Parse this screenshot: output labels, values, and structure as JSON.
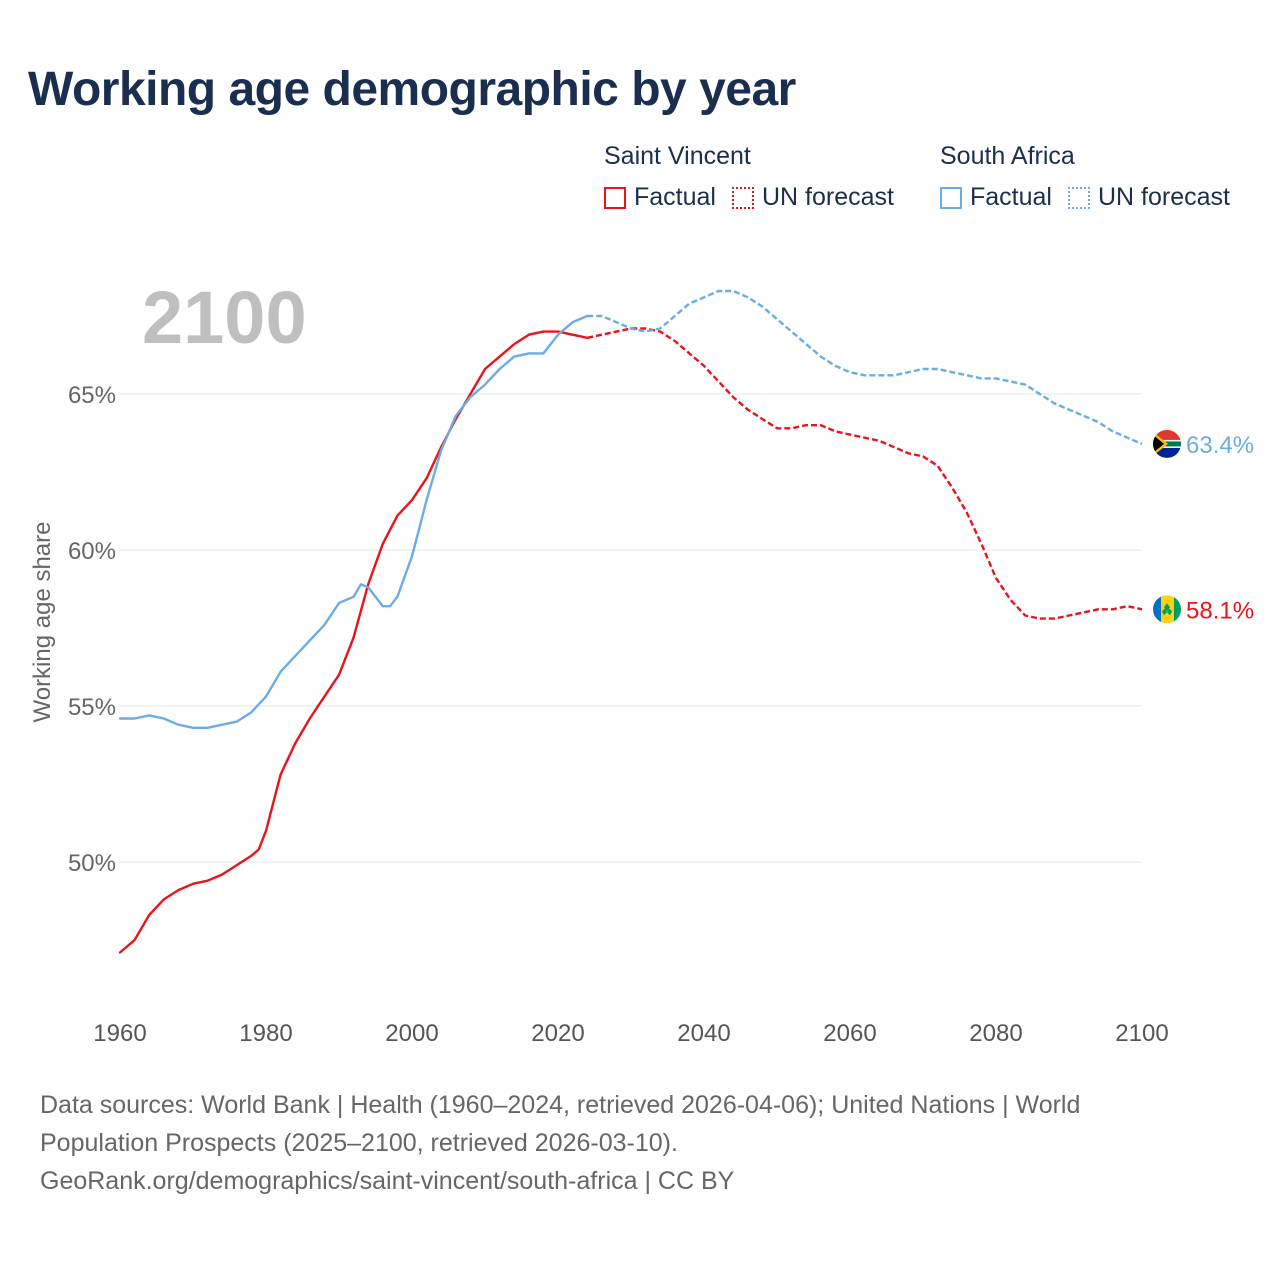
{
  "title": "Working age demographic by year",
  "legend": [
    {
      "country": "Saint Vincent",
      "factual_label": "Factual",
      "forecast_label": "UN forecast",
      "color": "#e8141c"
    },
    {
      "country": "South Africa",
      "factual_label": "Factual",
      "forecast_label": "UN forecast",
      "color": "#6aace6"
    }
  ],
  "year_watermark": "2100",
  "footer": {
    "line1": "Data sources: World Bank | Health (1960–2024, retrieved 2026-04-06); United Nations | World",
    "line2": "Population Prospects (2025–2100, retrieved 2026-03-10).",
    "line3": "GeoRank.org/demographics/saint-vincent/south-africa | CC BY"
  },
  "chart_data": {
    "type": "line",
    "title": "Working age demographic by year",
    "xlabel": "",
    "ylabel": "Working age share",
    "xlim": [
      1960,
      2100
    ],
    "ylim": [
      47,
      68.5
    ],
    "x_ticks": [
      1960,
      1980,
      2000,
      2020,
      2040,
      2060,
      2080,
      2100
    ],
    "y_ticks": [
      50,
      55,
      60,
      65
    ],
    "y_tick_labels": [
      "50%",
      "55%",
      "60%",
      "65%"
    ],
    "grid": true,
    "forecast_start_year": 2024,
    "series": [
      {
        "name": "Saint Vincent",
        "color": "#e8141c",
        "end_label": "58.1%",
        "points": [
          [
            1960,
            47.1
          ],
          [
            1962,
            47.5
          ],
          [
            1964,
            48.3
          ],
          [
            1966,
            48.8
          ],
          [
            1968,
            49.1
          ],
          [
            1970,
            49.3
          ],
          [
            1972,
            49.4
          ],
          [
            1974,
            49.6
          ],
          [
            1976,
            49.9
          ],
          [
            1978,
            50.2
          ],
          [
            1979,
            50.4
          ],
          [
            1980,
            51.0
          ],
          [
            1982,
            52.8
          ],
          [
            1984,
            53.8
          ],
          [
            1986,
            54.6
          ],
          [
            1988,
            55.3
          ],
          [
            1990,
            56.0
          ],
          [
            1992,
            57.2
          ],
          [
            1994,
            58.9
          ],
          [
            1996,
            60.2
          ],
          [
            1998,
            61.1
          ],
          [
            2000,
            61.6
          ],
          [
            2002,
            62.3
          ],
          [
            2004,
            63.3
          ],
          [
            2006,
            64.2
          ],
          [
            2008,
            65.0
          ],
          [
            2010,
            65.8
          ],
          [
            2012,
            66.2
          ],
          [
            2014,
            66.6
          ],
          [
            2016,
            66.9
          ],
          [
            2018,
            67.0
          ],
          [
            2020,
            67.0
          ],
          [
            2022,
            66.9
          ],
          [
            2024,
            66.8
          ],
          [
            2026,
            66.9
          ],
          [
            2028,
            67.0
          ],
          [
            2030,
            67.1
          ],
          [
            2032,
            67.1
          ],
          [
            2034,
            67.0
          ],
          [
            2036,
            66.7
          ],
          [
            2038,
            66.3
          ],
          [
            2040,
            65.9
          ],
          [
            2042,
            65.4
          ],
          [
            2044,
            64.9
          ],
          [
            2046,
            64.5
          ],
          [
            2048,
            64.2
          ],
          [
            2050,
            63.9
          ],
          [
            2052,
            63.9
          ],
          [
            2054,
            64.0
          ],
          [
            2056,
            64.0
          ],
          [
            2058,
            63.8
          ],
          [
            2060,
            63.7
          ],
          [
            2062,
            63.6
          ],
          [
            2064,
            63.5
          ],
          [
            2066,
            63.3
          ],
          [
            2068,
            63.1
          ],
          [
            2070,
            63.0
          ],
          [
            2072,
            62.7
          ],
          [
            2074,
            62.0
          ],
          [
            2076,
            61.2
          ],
          [
            2078,
            60.2
          ],
          [
            2080,
            59.1
          ],
          [
            2082,
            58.4
          ],
          [
            2084,
            57.9
          ],
          [
            2086,
            57.8
          ],
          [
            2088,
            57.8
          ],
          [
            2090,
            57.9
          ],
          [
            2092,
            58.0
          ],
          [
            2094,
            58.1
          ],
          [
            2096,
            58.1
          ],
          [
            2098,
            58.2
          ],
          [
            2100,
            58.1
          ]
        ]
      },
      {
        "name": "South Africa",
        "color": "#6aace6",
        "end_label": "63.4%",
        "points": [
          [
            1960,
            54.6
          ],
          [
            1962,
            54.6
          ],
          [
            1964,
            54.7
          ],
          [
            1966,
            54.6
          ],
          [
            1968,
            54.4
          ],
          [
            1970,
            54.3
          ],
          [
            1972,
            54.3
          ],
          [
            1974,
            54.4
          ],
          [
            1976,
            54.5
          ],
          [
            1978,
            54.8
          ],
          [
            1980,
            55.3
          ],
          [
            1982,
            56.1
          ],
          [
            1984,
            56.6
          ],
          [
            1986,
            57.1
          ],
          [
            1988,
            57.6
          ],
          [
            1990,
            58.3
          ],
          [
            1992,
            58.5
          ],
          [
            1993,
            58.9
          ],
          [
            1994,
            58.8
          ],
          [
            1996,
            58.2
          ],
          [
            1997,
            58.2
          ],
          [
            1998,
            58.5
          ],
          [
            2000,
            59.8
          ],
          [
            2002,
            61.6
          ],
          [
            2004,
            63.2
          ],
          [
            2006,
            64.3
          ],
          [
            2008,
            64.9
          ],
          [
            2010,
            65.3
          ],
          [
            2012,
            65.8
          ],
          [
            2014,
            66.2
          ],
          [
            2016,
            66.3
          ],
          [
            2018,
            66.3
          ],
          [
            2020,
            66.9
          ],
          [
            2022,
            67.3
          ],
          [
            2024,
            67.5
          ],
          [
            2026,
            67.5
          ],
          [
            2028,
            67.3
          ],
          [
            2030,
            67.1
          ],
          [
            2032,
            67.0
          ],
          [
            2034,
            67.1
          ],
          [
            2036,
            67.5
          ],
          [
            2038,
            67.9
          ],
          [
            2040,
            68.1
          ],
          [
            2042,
            68.3
          ],
          [
            2044,
            68.3
          ],
          [
            2046,
            68.1
          ],
          [
            2048,
            67.8
          ],
          [
            2050,
            67.4
          ],
          [
            2052,
            67.0
          ],
          [
            2054,
            66.6
          ],
          [
            2056,
            66.2
          ],
          [
            2058,
            65.9
          ],
          [
            2060,
            65.7
          ],
          [
            2062,
            65.6
          ],
          [
            2064,
            65.6
          ],
          [
            2066,
            65.6
          ],
          [
            2068,
            65.7
          ],
          [
            2070,
            65.8
          ],
          [
            2072,
            65.8
          ],
          [
            2074,
            65.7
          ],
          [
            2076,
            65.6
          ],
          [
            2078,
            65.5
          ],
          [
            2080,
            65.5
          ],
          [
            2082,
            65.4
          ],
          [
            2084,
            65.3
          ],
          [
            2086,
            65.0
          ],
          [
            2088,
            64.7
          ],
          [
            2090,
            64.5
          ],
          [
            2092,
            64.3
          ],
          [
            2094,
            64.1
          ],
          [
            2096,
            63.8
          ],
          [
            2098,
            63.6
          ],
          [
            2100,
            63.4
          ]
        ]
      }
    ]
  }
}
